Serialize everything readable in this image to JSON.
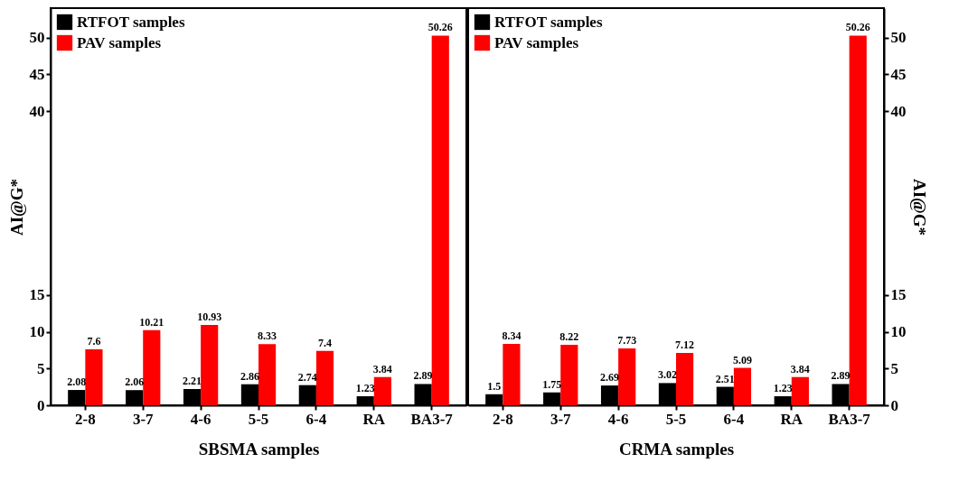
{
  "chart_data": [
    {
      "type": "bar",
      "xlabel": "SBSMA samples",
      "ylabel": "AI@G*",
      "categories": [
        "2-8",
        "3-7",
        "4-6",
        "5-5",
        "6-4",
        "RA",
        "BA3-7"
      ],
      "series": [
        {
          "name": "RTFOT samples",
          "color": "#000000",
          "values": [
            2.08,
            2.06,
            2.21,
            2.86,
            2.74,
            1.23,
            2.89
          ]
        },
        {
          "name": "PAV samples",
          "color": "#ff0000",
          "values": [
            7.6,
            10.21,
            10.93,
            8.33,
            7.4,
            3.84,
            50.26
          ]
        }
      ],
      "ylim": [
        0,
        54
      ],
      "yticks": [
        0,
        5,
        10,
        15,
        40,
        45,
        50
      ],
      "data_labels": true,
      "legend": "top left"
    },
    {
      "type": "bar",
      "xlabel": "CRMA samples",
      "ylabel": "AI@G*",
      "categories": [
        "2-8",
        "3-7",
        "4-6",
        "5-5",
        "6-4",
        "RA",
        "BA3-7"
      ],
      "series": [
        {
          "name": "RTFOT samples",
          "color": "#000000",
          "values": [
            1.5,
            1.75,
            2.69,
            3.02,
            2.51,
            1.23,
            2.89
          ]
        },
        {
          "name": "PAV samples",
          "color": "#ff0000",
          "values": [
            8.34,
            8.22,
            7.73,
            7.12,
            5.09,
            3.84,
            50.26
          ]
        }
      ],
      "ylim": [
        0,
        54
      ],
      "yticks": [
        0,
        5,
        10,
        15,
        40,
        45,
        50
      ],
      "data_labels": true,
      "legend": "top left"
    }
  ]
}
